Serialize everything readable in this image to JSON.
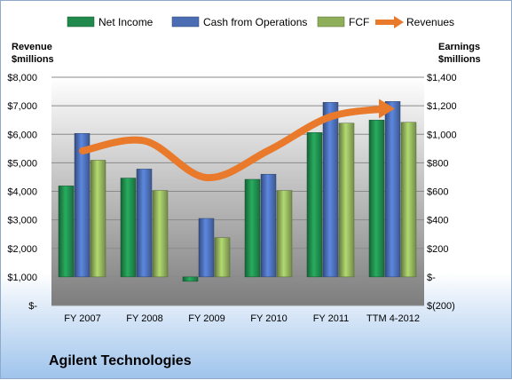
{
  "company": "Agilent Technologies",
  "chart_data": {
    "type": "bar",
    "categories": [
      "FY 2007",
      "FY 2008",
      "FY 2009",
      "FY 2010",
      "FY 2011",
      "TTM 4-2012"
    ],
    "series": [
      {
        "name": "Net Income",
        "axis": "right",
        "color": "#1f8a4c",
        "values": [
          638,
          693,
          -31,
          684,
          1012,
          1100
        ]
      },
      {
        "name": "Cash from Operations",
        "axis": "right",
        "color": "#4a6db3",
        "values": [
          1006,
          756,
          410,
          720,
          1224,
          1230
        ]
      },
      {
        "name": "FCF",
        "axis": "right",
        "color": "#8fae5a",
        "values": [
          818,
          606,
          275,
          606,
          1078,
          1084
        ]
      },
      {
        "name": "Revenues",
        "axis": "left",
        "color": "#e97a2b",
        "type": "line",
        "values": [
          5420,
          5770,
          4480,
          5440,
          6620,
          6900
        ]
      }
    ],
    "left_axis": {
      "title": "Revenue\n$millions",
      "title_lines": [
        "Revenue",
        "$millions"
      ],
      "ylim": [
        0,
        8000
      ],
      "ticks": [
        0,
        1000,
        2000,
        3000,
        4000,
        5000,
        6000,
        7000,
        8000
      ],
      "tick_labels": [
        "$-",
        "$1,000",
        "$2,000",
        "$3,000",
        "$4,000",
        "$5,000",
        "$6,000",
        "$7,000",
        "$8,000"
      ]
    },
    "right_axis": {
      "title": "Earnings\n$millions",
      "title_lines": [
        "Earnings",
        "$millions"
      ],
      "ylim": [
        -200,
        1400
      ],
      "ticks": [
        -200,
        0,
        200,
        400,
        600,
        800,
        1000,
        1200,
        1400
      ],
      "tick_labels": [
        "$(200)",
        "$-",
        "$200",
        "$400",
        "$600",
        "$800",
        "$1,000",
        "$1,200",
        "$1,400"
      ]
    },
    "legend_position": "top",
    "grid": true
  }
}
